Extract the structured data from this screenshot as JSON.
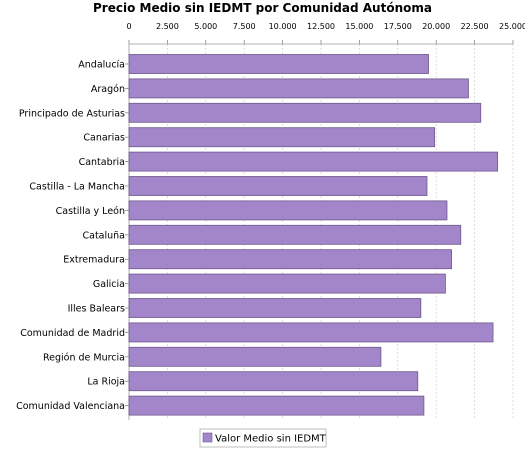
{
  "chart_data": {
    "type": "bar",
    "orientation": "horizontal",
    "title": "Precio Medio sin IEDMT por Comunidad Autónoma",
    "xlabel": "",
    "ylabel": "",
    "xlim": [
      0,
      25000
    ],
    "ticks": [
      0,
      2500,
      5000,
      7500,
      10000,
      12500,
      15000,
      17500,
      20000,
      22500,
      25000
    ],
    "tick_labels": [
      "0",
      "2.500",
      "5.000",
      "7.500",
      "10.000",
      "12.500",
      "15.000",
      "17.500",
      "20.000",
      "22.500",
      "25.000"
    ],
    "grid": true,
    "legend_position": "bottom",
    "categories": [
      "Andalucía",
      "Aragón",
      "Principado de Asturias",
      "Canarias",
      "Cantabria",
      "Castilla - La Mancha",
      "Castilla y León",
      "Cataluña",
      "Extremadura",
      "Galicia",
      "Illes Balears",
      "Comunidad de Madrid",
      "Región de Murcia",
      "La Rioja",
      "Comunidad Valenciana"
    ],
    "series": [
      {
        "name": "Valor Medio sin IEDMT",
        "color": "#a385c9",
        "values": [
          19500,
          22100,
          22900,
          19900,
          24000,
          19400,
          20700,
          21600,
          21000,
          20600,
          19000,
          23700,
          16400,
          18800,
          19200
        ]
      }
    ]
  }
}
